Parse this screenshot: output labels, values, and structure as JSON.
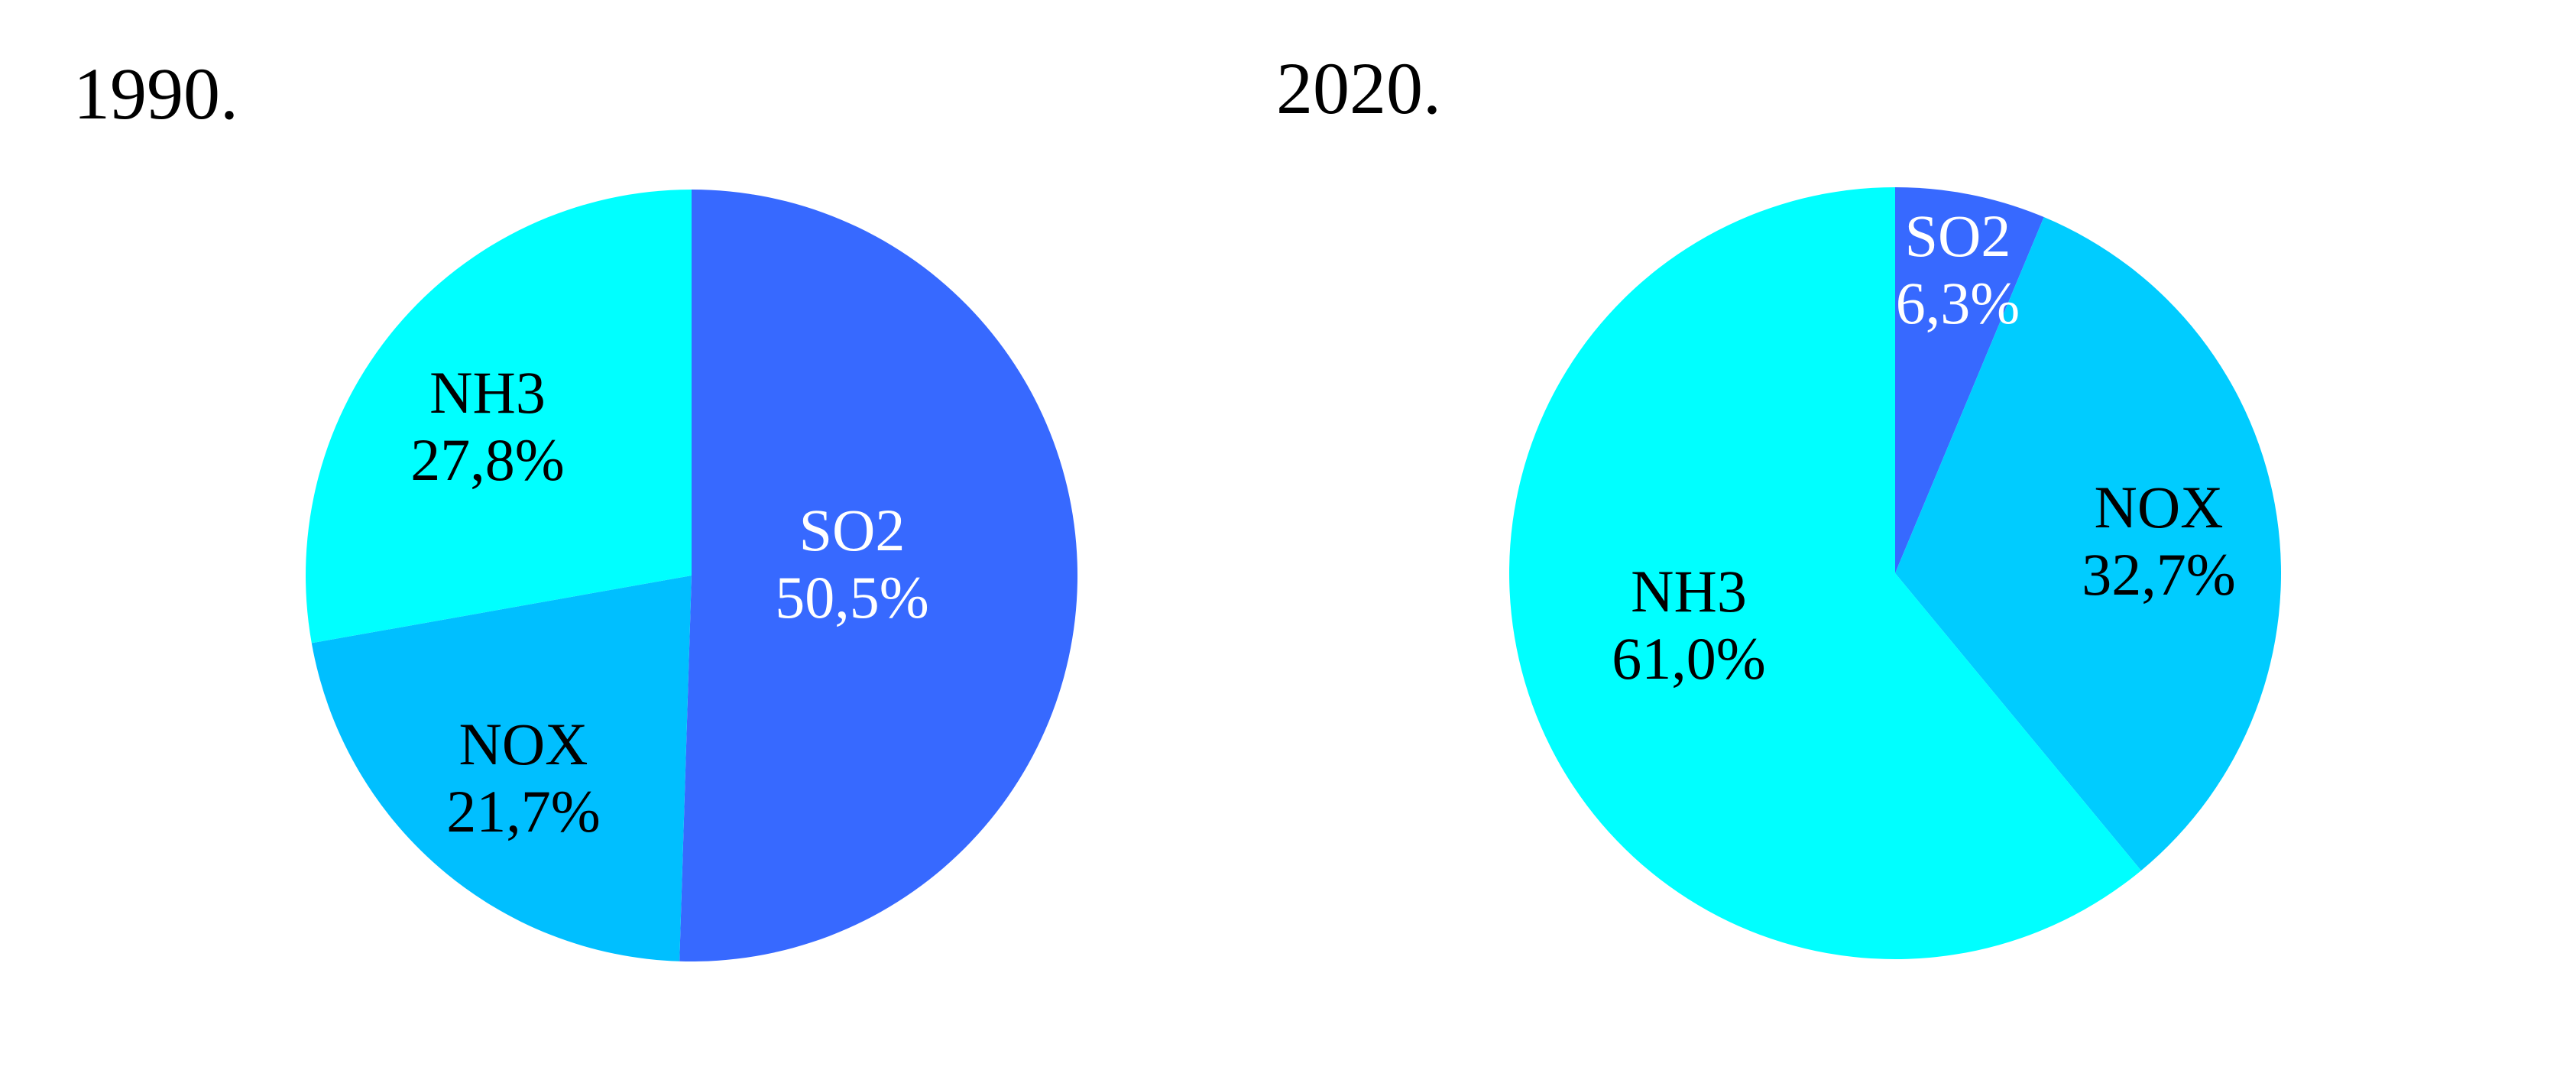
{
  "chart_data": [
    {
      "type": "pie",
      "title": "1990.",
      "slices": [
        {
          "label": "SO2",
          "value": 50.5,
          "value_label": "50,5%",
          "color": "#3769FF",
          "text_color": "#FFFFFF"
        },
        {
          "label": "NOX",
          "value": 21.7,
          "value_label": "21,7%",
          "color": "#00BFFF",
          "text_color": "#000000"
        },
        {
          "label": "NH3",
          "value": 27.8,
          "value_label": "27,8%",
          "color": "#00FFFF",
          "text_color": "#000000"
        }
      ]
    },
    {
      "type": "pie",
      "title": "2020.",
      "slices": [
        {
          "label": "SO2",
          "value": 6.3,
          "value_label": "6,3%",
          "color": "#3769FF",
          "text_color": "#FFFFFF"
        },
        {
          "label": "NOX",
          "value": 32.7,
          "value_label": "32,7%",
          "color": "#00CCFF",
          "text_color": "#000000"
        },
        {
          "label": "NH3",
          "value": 61.0,
          "value_label": "61,0%",
          "color": "#00FFFF",
          "text_color": "#000000"
        }
      ]
    }
  ]
}
